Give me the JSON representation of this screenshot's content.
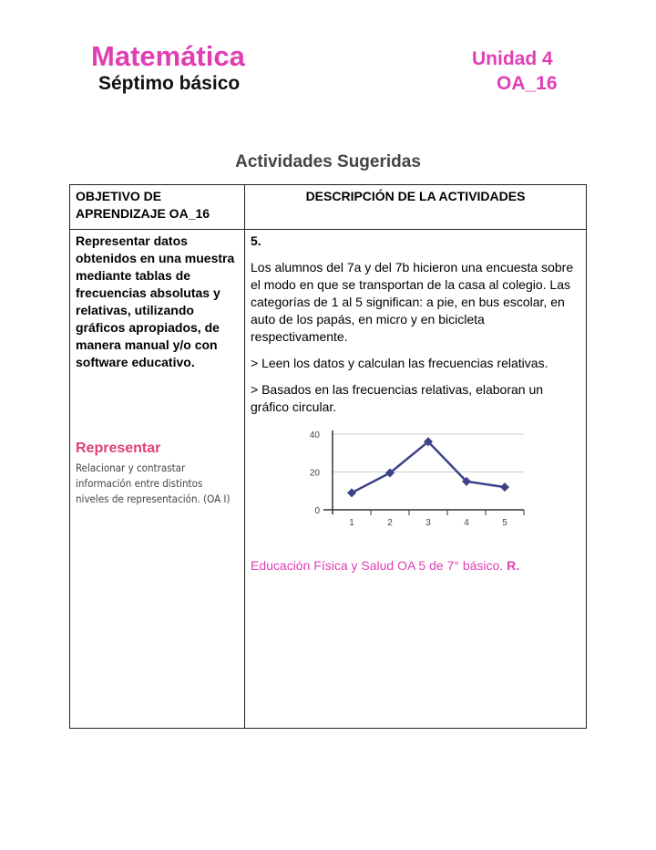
{
  "header": {
    "subject": "Matemática",
    "level": "Séptimo básico",
    "unit": "Unidad 4",
    "oa": "OA_16"
  },
  "section_title": "Actividades Sugeridas",
  "table": {
    "col1_header": "OBJETIVO DE APRENDIZAJE OA_16",
    "col2_header": "DESCRIPCIÓN DE LA ACTIVIDADES",
    "objective": "Representar datos obtenidos en una muestra mediante tablas de frecuencias absolutas y relativas, utilizando gráficos apropiados, de manera manual y/o con software educativo.",
    "skill_title": "Representar",
    "skill_text": "Relacionar y contrastar información entre distintos niveles de representación. (OA I)",
    "number": "5.",
    "p1": "Los alumnos del 7a y del 7b hicieron una encuesta sobre el modo en que se transportan de la casa al colegio. Las categorías de 1 al 5 significan: a pie, en bus escolar, en auto de los papás, en micro y en bicicleta respectivamente.",
    "p2": "> Leen los datos y calculan las frecuencias relativas.",
    "p3": "> Basados en las frecuencias relativas, elaboran un gráfico circular.",
    "reference": "Educación Física y Salud OA 5 de 7° básico.",
    "reference_mark": "R."
  },
  "chart_data": {
    "type": "line",
    "categories": [
      "1",
      "2",
      "3",
      "4",
      "5"
    ],
    "values": [
      9,
      19.5,
      36,
      15,
      12
    ],
    "ylim": [
      0,
      40
    ],
    "yticks": [
      0,
      20,
      40
    ],
    "grid": true,
    "color": "#3b4389"
  }
}
